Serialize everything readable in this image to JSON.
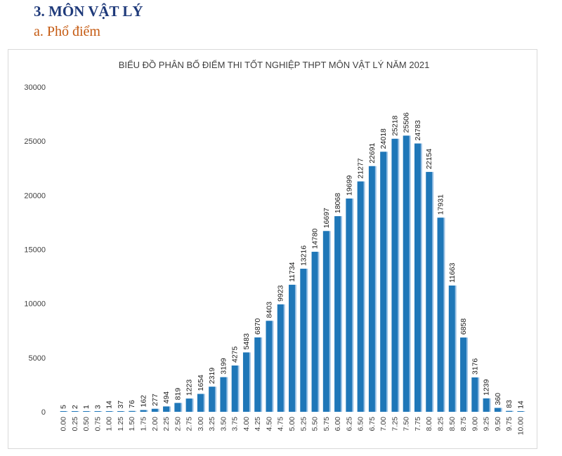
{
  "section": {
    "title": "3.  MÔN VẬT LÝ",
    "subtitle": "a.  Phổ điểm"
  },
  "colors": {
    "bar": "#1f77b8",
    "bar_shadow": "#9dc3e6",
    "heading": "#1f3a7a",
    "subheading": "#c55a11"
  },
  "chart_data": {
    "type": "bar",
    "title": "BIỂU ĐỒ PHÂN BỐ ĐIỂM THI TỐT NGHIỆP THPT MÔN VẬT LÝ NĂM 2021",
    "categories": [
      "0.00",
      "0.25",
      "0.50",
      "0.75",
      "1.00",
      "1.25",
      "1.50",
      "1.75",
      "2.00",
      "2.25",
      "2.50",
      "2.75",
      "3.00",
      "3.25",
      "3.50",
      "3.75",
      "4.00",
      "4.25",
      "4.50",
      "4.75",
      "5.00",
      "5.25",
      "5.50",
      "5.75",
      "6.00",
      "6.25",
      "6.50",
      "6.75",
      "7.00",
      "7.25",
      "7.50",
      "7.75",
      "8.00",
      "8.25",
      "8.50",
      "8.75",
      "9.00",
      "9.25",
      "9.50",
      "9.75",
      "10.00"
    ],
    "values": [
      5,
      2,
      1,
      3,
      14,
      37,
      76,
      162,
      277,
      494,
      819,
      1223,
      1654,
      2319,
      3199,
      4275,
      5483,
      6870,
      8403,
      9923,
      11734,
      13216,
      14780,
      16697,
      18068,
      19699,
      21277,
      22691,
      24018,
      25218,
      25506,
      24783,
      22154,
      17931,
      11663,
      6858,
      3176,
      1239,
      360,
      83,
      14
    ],
    "ylim": [
      0,
      30000
    ],
    "yticks": [
      "0",
      "5000",
      "10000",
      "15000",
      "20000",
      "25000",
      "30000"
    ],
    "grid": false,
    "legend": "none"
  }
}
